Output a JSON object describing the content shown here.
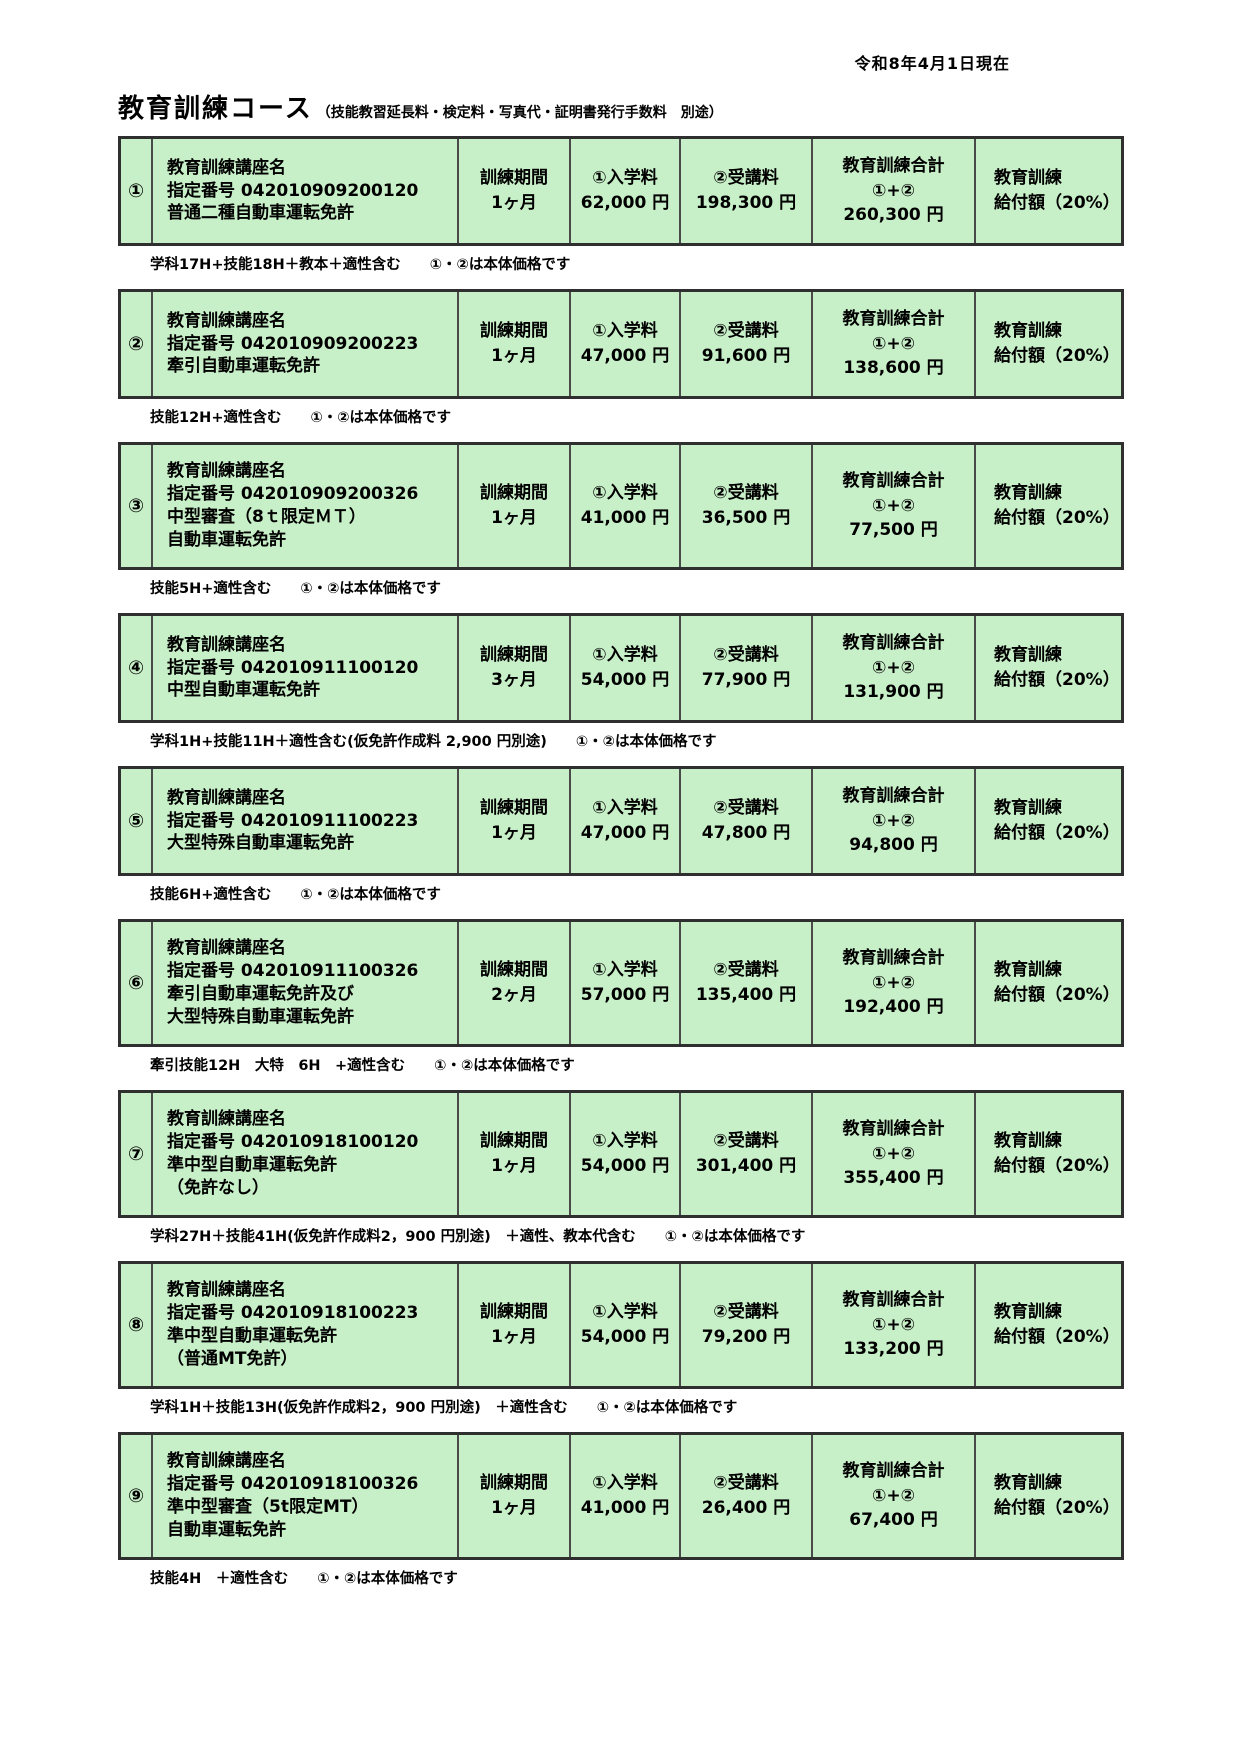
{
  "page": {
    "date_note": "令和8年4月1日現在",
    "title": "教育訓練コース",
    "title_note": "（技能教習延長料・検定料・写真代・証明書発行手数料　別途）"
  },
  "table": {
    "headers": {
      "course_label": "教育訓練講座名",
      "designation_label": "指定番号",
      "period_label": "訓練期間",
      "entrance_label": "①入学料",
      "tuition_label": "②受講料",
      "total_label": "教育訓練合計",
      "total_sublabel": "①+②",
      "benefit_line1": "教育訓練",
      "benefit_line2": "給付額（20%）"
    },
    "cell_background": "#c8f0c8",
    "rows": [
      {
        "no": "①",
        "designation_number": "042010909200120",
        "course_lines": [
          "普通二種自動車運転免許"
        ],
        "period": "1ヶ月",
        "entrance_fee": "62,000 円",
        "tuition_fee": "198,300 円",
        "total": "260,300 円",
        "note": "学科17H+技能18H＋教本＋適性含む　　①・②は本体価格です"
      },
      {
        "no": "②",
        "designation_number": "042010909200223",
        "course_lines": [
          "牽引自動車運転免許"
        ],
        "period": "1ヶ月",
        "entrance_fee": "47,000 円",
        "tuition_fee": "91,600 円",
        "total": "138,600 円",
        "note": "技能12H+適性含む　　①・②は本体価格です"
      },
      {
        "no": "③",
        "designation_number": "042010909200326",
        "course_lines": [
          "中型審査（8ｔ限定ＭＴ）",
          "自動車運転免許"
        ],
        "period": "1ヶ月",
        "entrance_fee": "41,000 円",
        "tuition_fee": "36,500 円",
        "total": "77,500 円",
        "note": "技能5H+適性含む　　①・②は本体価格です"
      },
      {
        "no": "④",
        "designation_number": "042010911100120",
        "course_lines": [
          "中型自動車運転免許"
        ],
        "period": "3ヶ月",
        "entrance_fee": "54,000 円",
        "tuition_fee": "77,900 円",
        "total": "131,900 円",
        "note": "学科1H+技能11H＋適性含む(仮免許作成料 2,900 円別途)　　①・②は本体価格です"
      },
      {
        "no": "⑤",
        "designation_number": "042010911100223",
        "course_lines": [
          "大型特殊自動車運転免許"
        ],
        "period": "1ヶ月",
        "entrance_fee": "47,000 円",
        "tuition_fee": "47,800 円",
        "total": "94,800 円",
        "note": "技能6H+適性含む　　①・②は本体価格です"
      },
      {
        "no": "⑥",
        "designation_number": "042010911100326",
        "course_lines": [
          "牽引自動車運転免許及び",
          "大型特殊自動車運転免許"
        ],
        "period": "2ヶ月",
        "entrance_fee": "57,000 円",
        "tuition_fee": "135,400 円",
        "total": "192,400 円",
        "note": "牽引技能12H　大特　6H　+適性含む　　①・②は本体価格です"
      },
      {
        "no": "⑦",
        "designation_number": "042010918100120",
        "course_lines": [
          "準中型自動車運転免許",
          "（免許なし）"
        ],
        "period": "1ヶ月",
        "entrance_fee": "54,000 円",
        "tuition_fee": "301,400 円",
        "total": "355,400 円",
        "note": "学科27H＋技能41H(仮免許作成料2，900 円別途)　＋適性、教本代含む　　①・②は本体価格です"
      },
      {
        "no": "⑧",
        "designation_number": "042010918100223",
        "course_lines": [
          "準中型自動車運転免許",
          "（普通MT免許）"
        ],
        "period": "1ヶ月",
        "entrance_fee": "54,000 円",
        "tuition_fee": "79,200 円",
        "total": "133,200 円",
        "note": "学科1H＋技能13H(仮免許作成料2，900 円別途)　＋適性含む　　①・②は本体価格です"
      },
      {
        "no": "⑨",
        "designation_number": "042010918100326",
        "course_lines": [
          "準中型審査（5t限定MT）",
          "自動車運転免許"
        ],
        "period": "1ヶ月",
        "entrance_fee": "41,000 円",
        "tuition_fee": "26,400 円",
        "total": "67,400 円",
        "note": "技能4H　＋適性含む　　①・②は本体価格です"
      }
    ]
  }
}
